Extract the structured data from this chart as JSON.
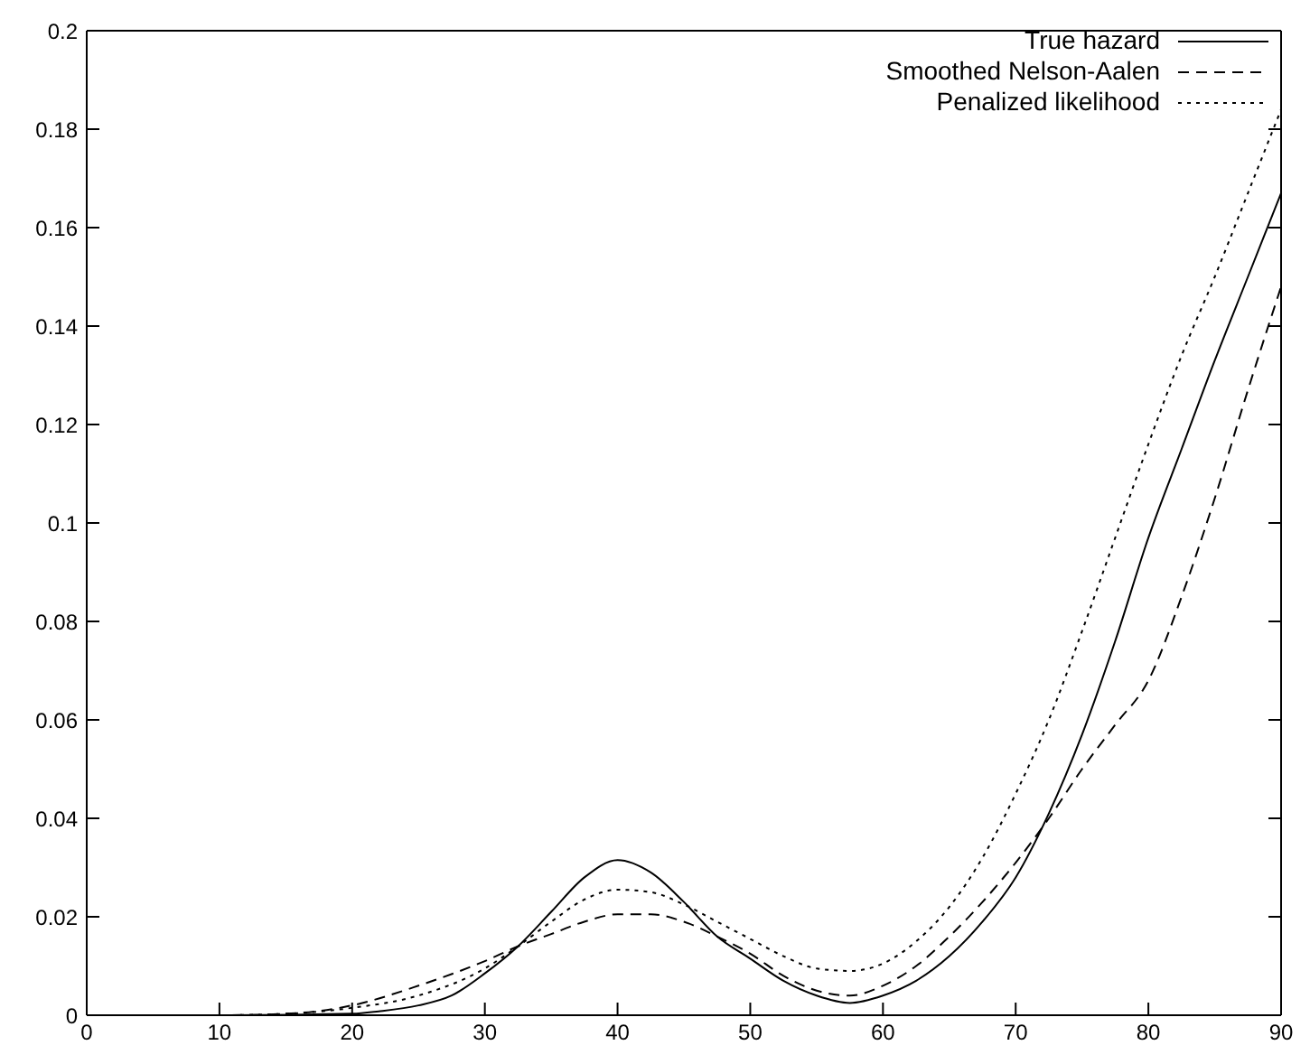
{
  "chart_data": {
    "type": "line",
    "xlim": [
      0,
      90
    ],
    "xticks": [
      0,
      10,
      20,
      30,
      40,
      50,
      60,
      70,
      80,
      90
    ],
    "ylim": [
      0,
      0.2
    ],
    "yticks": [
      0,
      0.02,
      0.04,
      0.06,
      0.08,
      0.1,
      0.12,
      0.14,
      0.16,
      0.18,
      0.2
    ],
    "legend": "top right",
    "marker": "none",
    "series": [
      {
        "name": "True hazard",
        "color": "#000000",
        "line_style": "solid",
        "x": [
          0,
          10,
          20,
          22,
          25,
          27.5,
          30,
          32.5,
          35,
          37.5,
          40,
          42.5,
          45,
          47.5,
          50,
          52.5,
          55,
          57.5,
          60,
          62.5,
          65,
          67.5,
          70,
          72.5,
          75,
          77.5,
          80,
          82.5,
          85,
          87.5,
          90
        ],
        "values": [
          0,
          0,
          0.0003,
          0.0008,
          0.002,
          0.004,
          0.0085,
          0.014,
          0.021,
          0.028,
          0.0315,
          0.029,
          0.023,
          0.016,
          0.0115,
          0.007,
          0.004,
          0.0025,
          0.004,
          0.007,
          0.012,
          0.019,
          0.028,
          0.041,
          0.057,
          0.076,
          0.097,
          0.115,
          0.133,
          0.15,
          0.167
        ]
      },
      {
        "name": "Smoothed Nelson-Aalen",
        "color": "#000000",
        "line_style": "dashed",
        "x": [
          0,
          10,
          15,
          20,
          25,
          30,
          32.5,
          35,
          37.5,
          40,
          42.5,
          45,
          47.5,
          50,
          52.5,
          55,
          57.5,
          60,
          62.5,
          65,
          67.5,
          70,
          72.5,
          75,
          77.5,
          80,
          82.5,
          85,
          87.5,
          90
        ],
        "values": [
          0,
          0,
          0.0003,
          0.002,
          0.006,
          0.011,
          0.014,
          0.0165,
          0.019,
          0.0205,
          0.0205,
          0.019,
          0.016,
          0.0125,
          0.008,
          0.005,
          0.004,
          0.006,
          0.01,
          0.016,
          0.023,
          0.031,
          0.04,
          0.05,
          0.059,
          0.068,
          0.085,
          0.105,
          0.127,
          0.148
        ]
      },
      {
        "name": "Penalized likelihood",
        "color": "#000000",
        "line_style": "dotted",
        "x": [
          0,
          10,
          15,
          20,
          25,
          30,
          32.5,
          35,
          37.5,
          40,
          42.5,
          45,
          47.5,
          50,
          52.5,
          55,
          57.5,
          60,
          62.5,
          65,
          67.5,
          70,
          72.5,
          75,
          77.5,
          80,
          82.5,
          85,
          87.5,
          90
        ],
        "values": [
          0,
          0,
          0.0003,
          0.0015,
          0.004,
          0.0095,
          0.014,
          0.019,
          0.0235,
          0.0255,
          0.025,
          0.0225,
          0.019,
          0.0155,
          0.012,
          0.0095,
          0.009,
          0.0105,
          0.015,
          0.022,
          0.032,
          0.045,
          0.06,
          0.078,
          0.097,
          0.116,
          0.134,
          0.15,
          0.167,
          0.184
        ]
      }
    ]
  }
}
